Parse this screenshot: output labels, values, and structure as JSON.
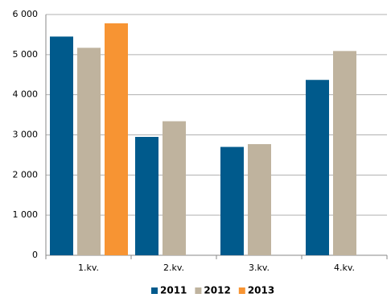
{
  "chart_data": {
    "type": "bar",
    "categories": [
      "1.kv.",
      "2.kv.",
      "3.kv.",
      "4.kv."
    ],
    "series": [
      {
        "name": "2011",
        "color": "#005a8c",
        "values": [
          5450,
          2950,
          2700,
          4370
        ]
      },
      {
        "name": "2012",
        "color": "#bfb39e",
        "values": [
          5170,
          3340,
          2770,
          5090
        ]
      },
      {
        "name": "2013",
        "color": "#f79433",
        "values": [
          5780,
          null,
          null,
          null
        ]
      }
    ],
    "ylim": [
      0,
      6000
    ],
    "yticks": [
      {
        "value": 0,
        "label": "0"
      },
      {
        "value": 1000,
        "label": "1 000"
      },
      {
        "value": 2000,
        "label": "2 000"
      },
      {
        "value": 3000,
        "label": "3 000"
      },
      {
        "value": 4000,
        "label": "4 000"
      },
      {
        "value": 5000,
        "label": "5 000"
      },
      {
        "value": 6000,
        "label": "6 000"
      }
    ],
    "grid": true,
    "legend": "bottom"
  }
}
